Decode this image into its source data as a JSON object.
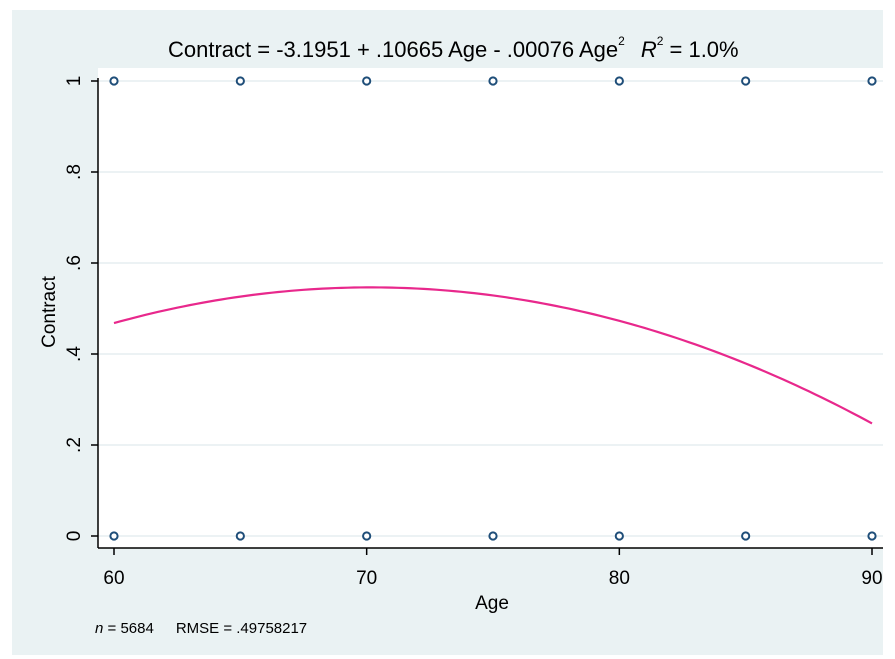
{
  "chart_data": {
    "type": "scatter",
    "title": {
      "lhs": "Contract = -3.1951 + .10665 Age - .00076 Age",
      "superscript": "2",
      "r2_letter": "R",
      "r2_superscript": "2",
      "r2_value": " = 1.0%"
    },
    "xlabel": "Age",
    "ylabel": "Contract",
    "xlim": [
      60,
      90
    ],
    "ylim": [
      0,
      1
    ],
    "x_ticks": [
      {
        "value": 60,
        "label": "60"
      },
      {
        "value": 70,
        "label": "70"
      },
      {
        "value": 80,
        "label": "80"
      },
      {
        "value": 90,
        "label": "90"
      }
    ],
    "y_ticks": [
      {
        "value": 0,
        "label": "0"
      },
      {
        "value": 0.2,
        "label": ".2"
      },
      {
        "value": 0.4,
        "label": ".4"
      },
      {
        "value": 0.6,
        "label": ".6"
      },
      {
        "value": 0.8,
        "label": ".8"
      },
      {
        "value": 1,
        "label": "1"
      }
    ],
    "grid": "horizontal",
    "scatter_points": [
      {
        "x": 60,
        "y": 1
      },
      {
        "x": 65,
        "y": 1
      },
      {
        "x": 70,
        "y": 1
      },
      {
        "x": 75,
        "y": 1
      },
      {
        "x": 80,
        "y": 1
      },
      {
        "x": 85,
        "y": 1
      },
      {
        "x": 90,
        "y": 1
      },
      {
        "x": 60,
        "y": 0
      },
      {
        "x": 65,
        "y": 0
      },
      {
        "x": 70,
        "y": 0
      },
      {
        "x": 75,
        "y": 0
      },
      {
        "x": 80,
        "y": 0
      },
      {
        "x": 85,
        "y": 0
      },
      {
        "x": 90,
        "y": 0
      }
    ],
    "fit_line": {
      "type": "line",
      "intercept": -3.1951,
      "b1": 0.10665,
      "b2": -0.00076,
      "x_range": [
        60,
        90
      ]
    },
    "colors": {
      "background": "#eaf2f3",
      "plot_area": "#ffffff",
      "marker": "#1f4e79",
      "fit_line": "#e8288c",
      "grid": "#e6eef0"
    },
    "note": {
      "n_label": "n",
      "n_value": " = 5684",
      "rmse": "RMSE =  .49758217"
    }
  }
}
